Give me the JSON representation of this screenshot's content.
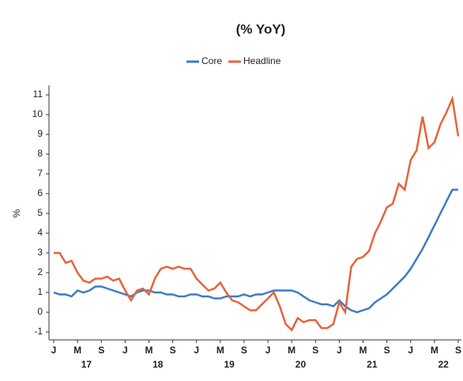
{
  "chart_data": {
    "type": "line",
    "title": "(% YoY)",
    "y_label": "%",
    "categories": [
      "J",
      null,
      null,
      null,
      "M",
      null,
      null,
      null,
      "S",
      null,
      null,
      null,
      "J",
      null,
      null,
      null,
      "M",
      null,
      null,
      null,
      "S",
      null,
      null,
      null,
      "J",
      null,
      null,
      null,
      "M",
      null,
      null,
      null,
      "S",
      null,
      null,
      null,
      "J",
      null,
      null,
      null,
      "M",
      null,
      null,
      null,
      "S",
      null,
      null,
      null,
      "J",
      null,
      null,
      null,
      "M",
      null,
      null,
      null,
      "S",
      null,
      null,
      null,
      "J",
      null,
      null,
      null,
      "M",
      null,
      null,
      null,
      "S"
    ],
    "x_group_labels": [
      "17",
      "18",
      "19",
      "20",
      "21",
      "22"
    ],
    "series": [
      {
        "name": "Core",
        "color": "#3b7cc4",
        "values": [
          1.0,
          0.9,
          0.9,
          0.8,
          1.1,
          1.0,
          1.1,
          1.3,
          1.3,
          1.2,
          1.1,
          1.0,
          0.9,
          0.8,
          1.0,
          1.1,
          1.1,
          1.0,
          1.0,
          0.9,
          0.9,
          0.8,
          0.8,
          0.9,
          0.9,
          0.8,
          0.8,
          0.7,
          0.7,
          0.8,
          0.8,
          0.8,
          0.9,
          0.8,
          0.9,
          0.9,
          1.0,
          1.1,
          1.1,
          1.1,
          1.1,
          1.0,
          0.8,
          0.6,
          0.5,
          0.4,
          0.4,
          0.3,
          0.6,
          0.3,
          0.1,
          0.0,
          0.1,
          0.2,
          0.5,
          0.7,
          0.9,
          1.2,
          1.5,
          1.8,
          2.2,
          2.7,
          3.2,
          3.8,
          4.4,
          5.0,
          5.6,
          6.2,
          6.2
        ]
      },
      {
        "name": "Headline",
        "color": "#e8623a",
        "values": [
          3.0,
          3.0,
          2.5,
          2.6,
          2.0,
          1.6,
          1.5,
          1.7,
          1.7,
          1.8,
          1.6,
          1.7,
          1.1,
          0.6,
          1.1,
          1.2,
          0.9,
          1.7,
          2.2,
          2.3,
          2.2,
          2.3,
          2.2,
          2.2,
          1.7,
          1.4,
          1.1,
          1.2,
          1.5,
          1.0,
          0.6,
          0.5,
          0.3,
          0.1,
          0.1,
          0.4,
          0.7,
          1.0,
          0.3,
          -0.6,
          -0.9,
          -0.3,
          -0.5,
          -0.4,
          -0.4,
          -0.8,
          -0.8,
          -0.6,
          0.5,
          0.0,
          2.3,
          2.7,
          2.8,
          3.1,
          4.0,
          4.6,
          5.3,
          5.5,
          6.5,
          6.2,
          7.7,
          8.2,
          9.9,
          8.3,
          8.6,
          9.5,
          10.1,
          10.8,
          8.9
        ]
      }
    ],
    "ylim": [
      -1.4,
      11.5
    ],
    "yticks": [
      -1,
      0,
      1,
      2,
      3,
      4,
      5,
      6,
      7,
      8,
      9,
      10,
      11
    ]
  }
}
